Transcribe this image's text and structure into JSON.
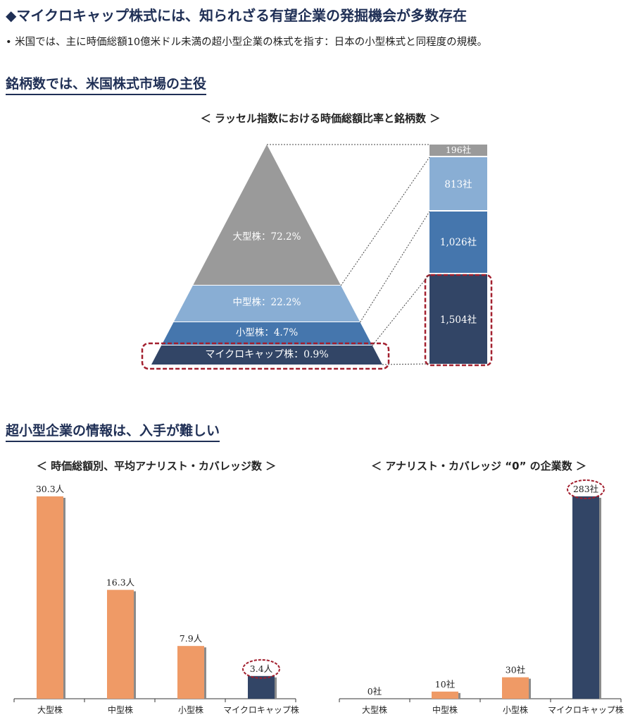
{
  "header": {
    "title": "◆マイクロキャップ株式には、知られざる有望企業の発掘機会が多数存在",
    "bullet": "• 米国では、主に時価総額10億米ドル未満の超小型企業の株式を指す：日本の小型株式と同程度の規模。"
  },
  "section1": {
    "heading": "銘柄数では、米国株式市場の主役"
  },
  "section2": {
    "heading": "超小型企業の情報は、入手が難しい"
  },
  "colors": {
    "heading": "#1f2f55",
    "large": "#9a9a9a",
    "mid": "#89aed4",
    "small": "#4576ad",
    "micro": "#324566",
    "orange": "#ef9a66",
    "highlight": "#a3202f"
  },
  "chart_data": [
    {
      "type": "pyramid",
      "title": "＜ ラッセル指数における時価総額比率と銘柄数 ＞",
      "categories": [
        "大型株",
        "中型株",
        "小型株",
        "マイクロキャップ株"
      ],
      "market_cap_share_labels": [
        "大型株：72.2%",
        "中型株：22.2%",
        "小型株：4.7%",
        "マイクロキャップ株：0.9%"
      ],
      "market_cap_share_pct": [
        72.2,
        22.2,
        4.7,
        0.9
      ],
      "company_count_labels": [
        "196社",
        "813社",
        "1,026社",
        "1,504社"
      ],
      "company_counts": [
        196,
        813,
        1026,
        1504
      ]
    },
    {
      "type": "bar",
      "title": "＜ 時価総額別、平均アナリスト・カバレッジ数 ＞",
      "categories": [
        "大型株",
        "中型株",
        "小型株",
        "マイクロキャップ株"
      ],
      "values": [
        30.3,
        16.3,
        7.9,
        3.4
      ],
      "value_labels": [
        "30.3人",
        "16.3人",
        "7.9人",
        "3.4人"
      ],
      "ylim": [
        0,
        30.3
      ]
    },
    {
      "type": "bar",
      "title": "＜ アナリスト・カバレッジ “0” の企業数 ＞",
      "categories": [
        "大型株",
        "中型株",
        "小型株",
        "マイクロキャップ株"
      ],
      "values": [
        0,
        10,
        30,
        283
      ],
      "value_labels": [
        "0社",
        "10社",
        "30社",
        "283社"
      ],
      "ylim": [
        0,
        283
      ]
    }
  ]
}
